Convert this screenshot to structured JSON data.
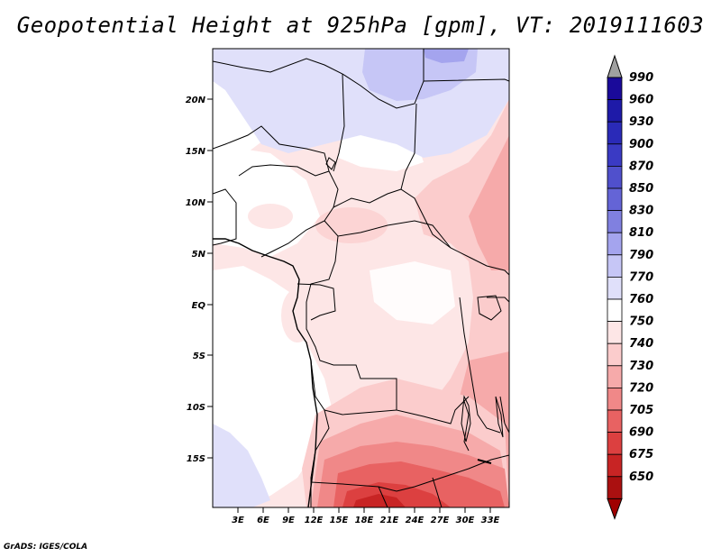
{
  "title": "Geopotential Height at 925hPa [gpm], VT: 2019111603",
  "credit": "GrADS: IGES/COLA",
  "map": {
    "lat_labels": [
      "20N",
      "15N",
      "10N",
      "5N",
      "EQ",
      "5S",
      "10S",
      "15S"
    ],
    "lon_labels": [
      "3E",
      "6E",
      "9E",
      "12E",
      "15E",
      "18E",
      "21E",
      "24E",
      "27E",
      "30E",
      "33E"
    ]
  },
  "colorbar": {
    "levels": [
      "990",
      "960",
      "930",
      "900",
      "870",
      "850",
      "830",
      "810",
      "790",
      "770",
      "760",
      "750",
      "740",
      "730",
      "720",
      "705",
      "690",
      "675",
      "650"
    ],
    "colors": [
      "#1a0a9a",
      "#1e1aa8",
      "#2a2ab8",
      "#3a3ac4",
      "#5050cc",
      "#6464d6",
      "#8080e0",
      "#a4a4ee",
      "#c6c6f6",
      "#e0e0fa",
      "#ffffff",
      "#fde6e6",
      "#fbcccc",
      "#f6aaaa",
      "#f08888",
      "#e86262",
      "#dc4040",
      "#c82424",
      "#aa1010"
    ],
    "top_arrow_color": "#a0a0a0",
    "bottom_arrow_color": "#a00000"
  }
}
